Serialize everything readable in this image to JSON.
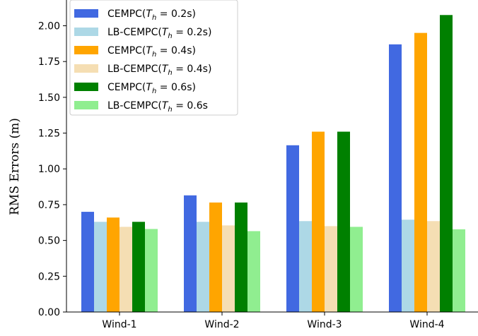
{
  "chart_data": {
    "type": "bar",
    "title": "",
    "xlabel": "",
    "ylabel": "RMS Errors (m)",
    "categories": [
      "Wind-1",
      "Wind-2",
      "Wind-3",
      "Wind-4"
    ],
    "ylim": [
      0,
      2.18
    ],
    "yticks": [
      "0.00",
      "0.25",
      "0.50",
      "0.75",
      "1.00",
      "1.25",
      "1.50",
      "1.75",
      "2.00"
    ],
    "grid": false,
    "legend_position": "top-left",
    "series": [
      {
        "name": "CEMPC(T_h = 0.2s)",
        "color": "#4169e1",
        "values": [
          0.7,
          0.815,
          1.165,
          1.87
        ]
      },
      {
        "name": "LB-CEMPC(T_h = 0.2s)",
        "color": "#add8e6",
        "values": [
          0.63,
          0.63,
          0.635,
          0.645
        ]
      },
      {
        "name": "CEMPC(T_h = 0.4s)",
        "color": "#ffa500",
        "values": [
          0.66,
          0.765,
          1.26,
          1.95
        ]
      },
      {
        "name": "LB-CEMPC(T_h = 0.4s)",
        "color": "#f5deb3",
        "values": [
          0.595,
          0.605,
          0.6,
          0.635
        ]
      },
      {
        "name": "CEMPC(T_h = 0.6s)",
        "color": "#008000",
        "values": [
          0.63,
          0.765,
          1.26,
          2.075
        ]
      },
      {
        "name": "LB-CEMPC(T_h = 0.6s",
        "color": "#90ee90",
        "values": [
          0.58,
          0.565,
          0.595,
          0.578
        ]
      }
    ],
    "legend": [
      {
        "prefix": "CEMPC(",
        "th": "0.2s)"
      },
      {
        "prefix": "LB-CEMPC(",
        "th": "0.2s)"
      },
      {
        "prefix": "CEMPC(",
        "th": "0.4s)"
      },
      {
        "prefix": "LB-CEMPC(",
        "th": "0.4s)"
      },
      {
        "prefix": "CEMPC(",
        "th": "0.6s)"
      },
      {
        "prefix": "LB-CEMPC(",
        "th": "0.6s"
      }
    ]
  }
}
